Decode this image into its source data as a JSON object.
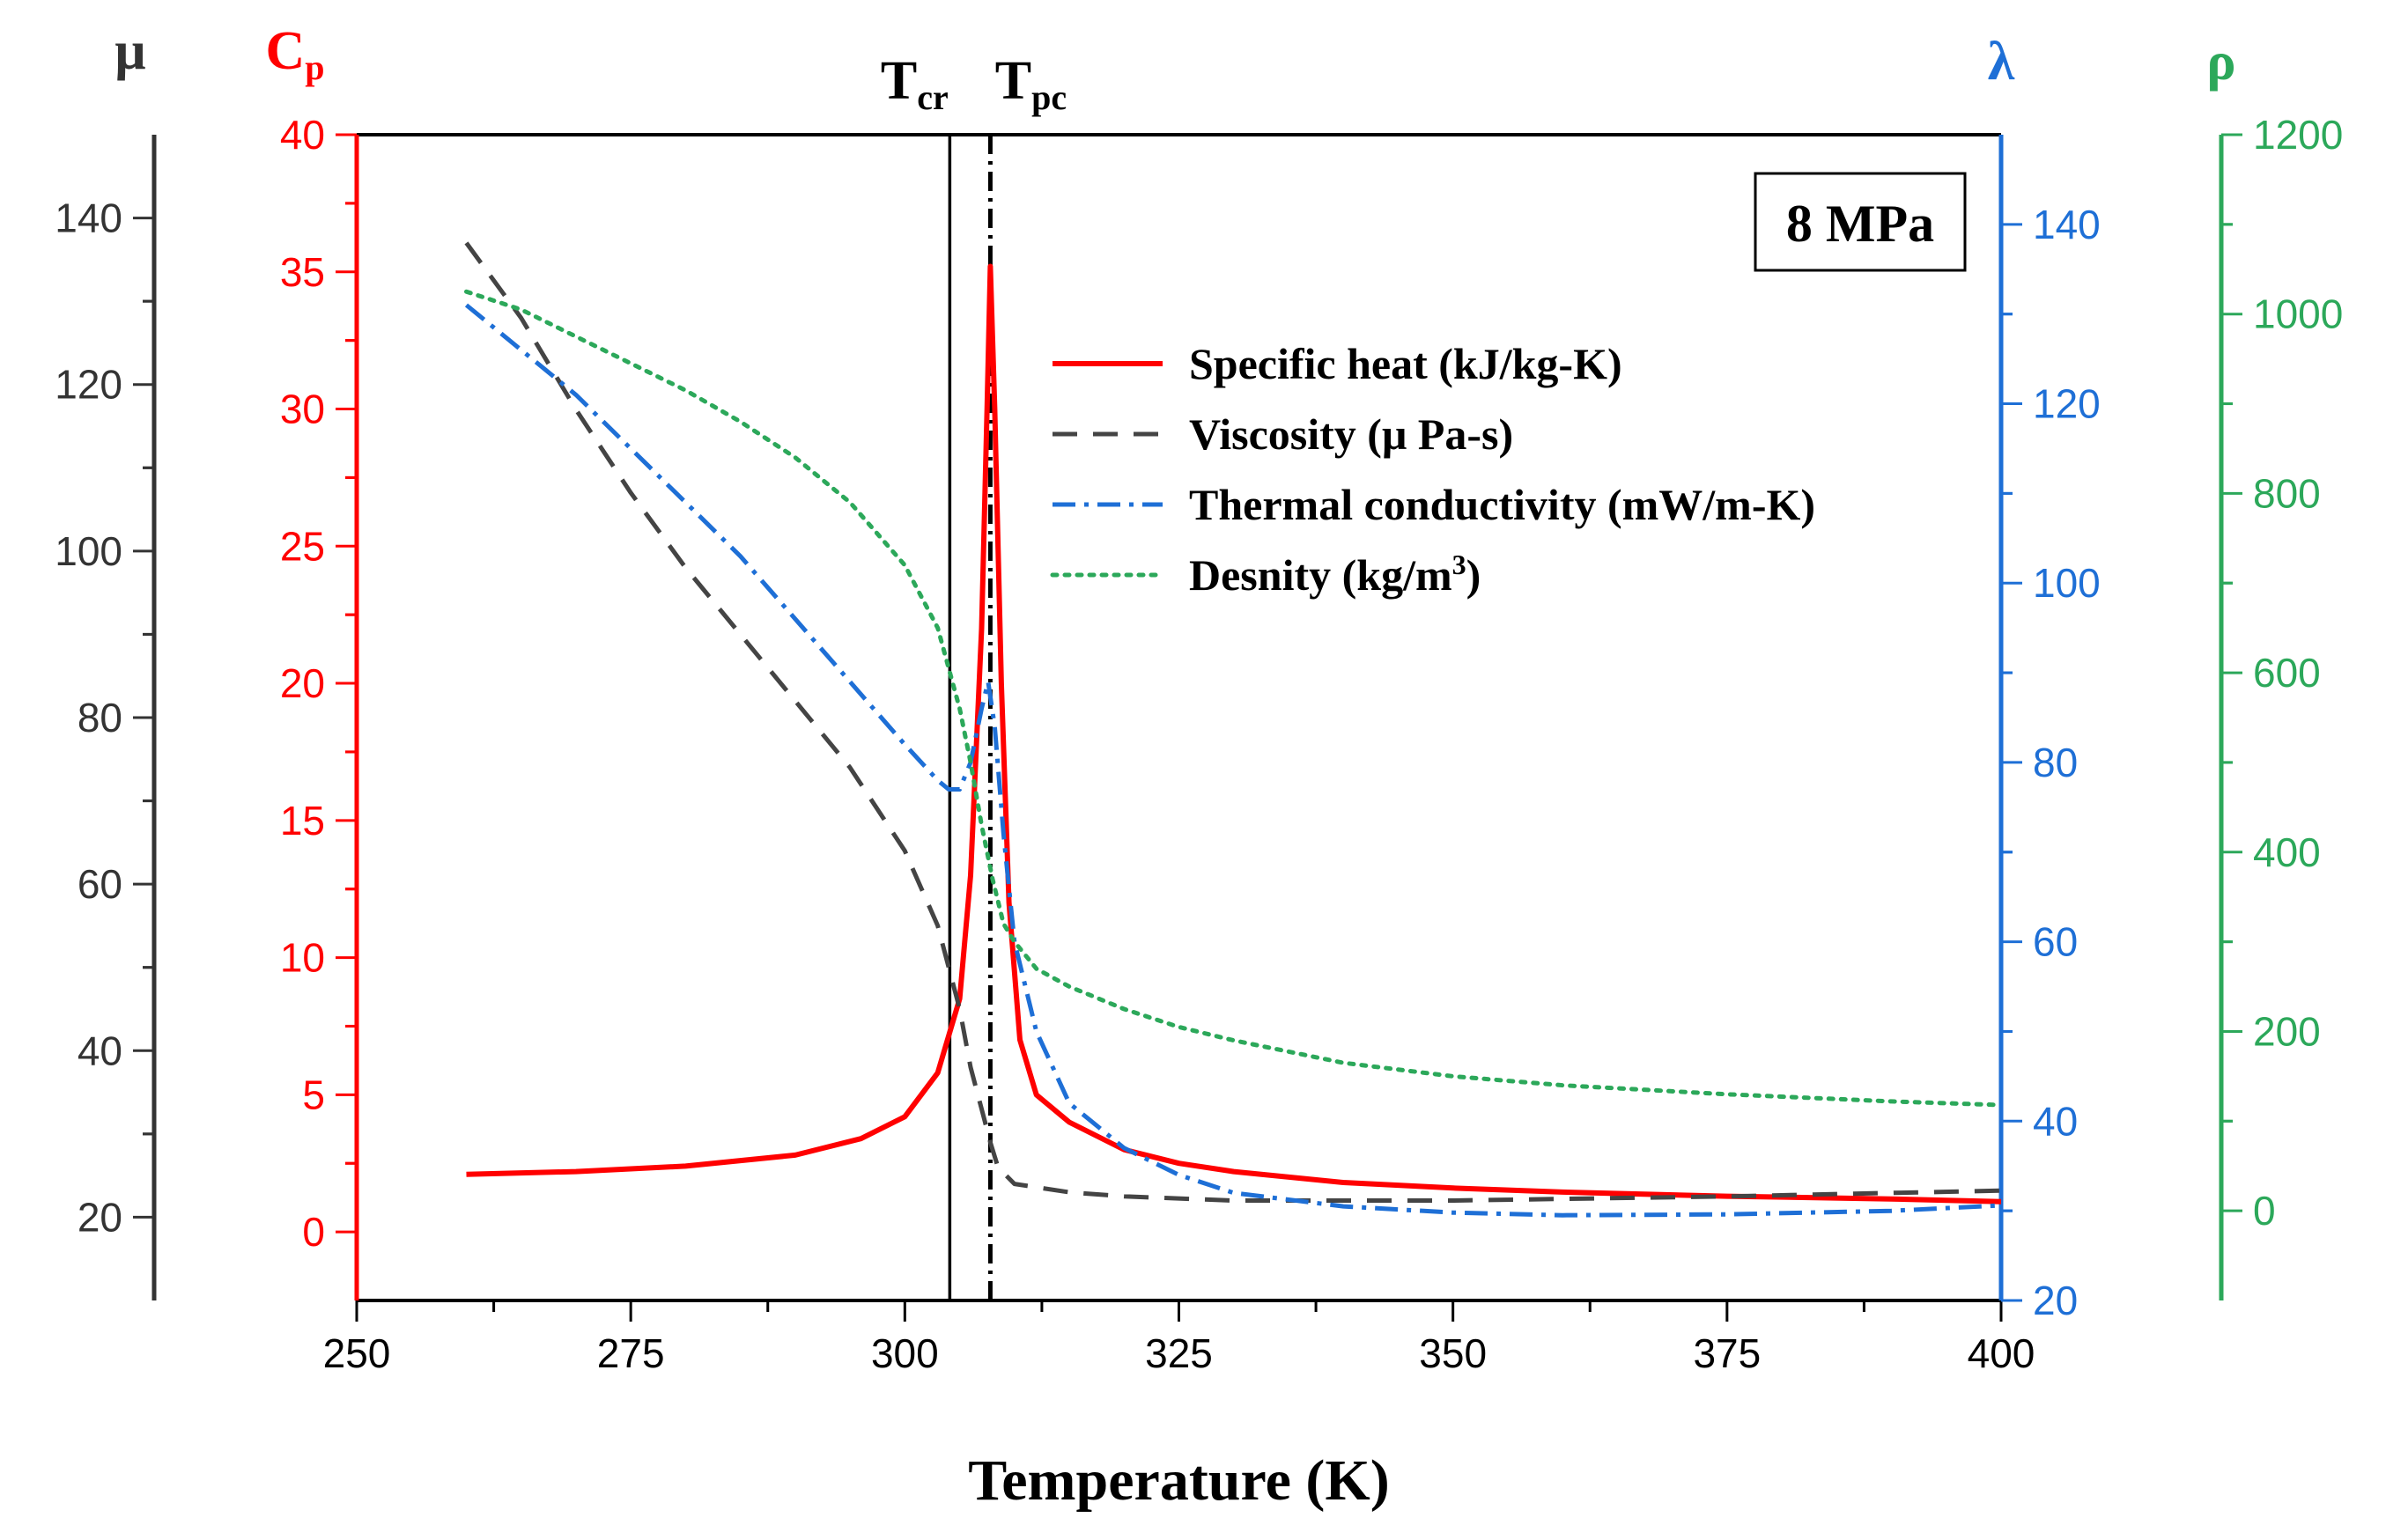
{
  "chart_data": {
    "type": "line",
    "xlabel": "Temperature (K)",
    "xlim": [
      250,
      400
    ],
    "x_ticks": [
      250,
      275,
      300,
      325,
      350,
      375,
      400
    ],
    "annotation": "8 MPa",
    "axes": {
      "mu": {
        "label": "μ",
        "color": "#333333",
        "ylim": [
          10,
          150
        ],
        "ticks": [
          20,
          40,
          60,
          80,
          100,
          120,
          140
        ],
        "tick_labels": [
          "20",
          "40",
          "60",
          "80",
          "100",
          "120",
          "140"
        ]
      },
      "cp": {
        "label": "C",
        "label_sub": "p",
        "color": "#ff0000",
        "ylim": [
          -2.5,
          40
        ],
        "ticks": [
          0,
          5,
          10,
          15,
          20,
          25,
          30,
          35,
          40
        ],
        "tick_labels": [
          "0",
          "5",
          "10",
          "15",
          "20",
          "25",
          "30",
          "35",
          "40"
        ]
      },
      "lambda": {
        "label": "λ",
        "color": "#1e6fd6",
        "ylim": [
          20,
          150
        ],
        "ticks": [
          20,
          40,
          60,
          80,
          100,
          120,
          140
        ],
        "tick_labels": [
          "20",
          "40",
          "60",
          "80",
          "100",
          "120",
          "140"
        ]
      },
      "rho": {
        "label": "ρ",
        "color": "#2ca85a",
        "ylim": [
          -100,
          1200
        ],
        "ticks": [
          0,
          200,
          400,
          600,
          800,
          1000,
          1200
        ],
        "tick_labels": [
          "0",
          "200",
          "400",
          "600",
          "800",
          "1000",
          "1200"
        ]
      }
    },
    "vlines": [
      {
        "x": 304.1,
        "label": "T",
        "sub": "cr",
        "style": "solid"
      },
      {
        "x": 307.8,
        "label": "T",
        "sub": "pc",
        "style": "dashdot"
      }
    ],
    "legend_position": "upper-right",
    "series": [
      {
        "name": "Specific heat (kJ/kg-K)",
        "axis": "cp",
        "color": "#ff0000",
        "style": "solid",
        "points": [
          [
            260,
            2.1
          ],
          [
            270,
            2.2
          ],
          [
            280,
            2.4
          ],
          [
            290,
            2.8
          ],
          [
            296,
            3.4
          ],
          [
            300,
            4.2
          ],
          [
            303,
            5.8
          ],
          [
            305,
            8.5
          ],
          [
            306,
            13
          ],
          [
            307,
            22
          ],
          [
            307.5,
            30
          ],
          [
            307.8,
            35.2
          ],
          [
            308.2,
            30
          ],
          [
            308.8,
            20
          ],
          [
            309.5,
            12
          ],
          [
            310.5,
            7
          ],
          [
            312,
            5
          ],
          [
            315,
            4
          ],
          [
            320,
            3
          ],
          [
            325,
            2.5
          ],
          [
            330,
            2.2
          ],
          [
            340,
            1.8
          ],
          [
            350,
            1.6
          ],
          [
            360,
            1.45
          ],
          [
            375,
            1.3
          ],
          [
            390,
            1.2
          ],
          [
            400,
            1.1
          ]
        ]
      },
      {
        "name": "Viscosity (μ Pa-s)",
        "axis": "mu",
        "color": "#444444",
        "style": "dash",
        "points": [
          [
            260,
            137
          ],
          [
            265,
            128
          ],
          [
            270,
            117
          ],
          [
            275,
            107
          ],
          [
            280,
            98
          ],
          [
            285,
            90
          ],
          [
            290,
            82
          ],
          [
            295,
            74
          ],
          [
            300,
            64
          ],
          [
            303,
            55
          ],
          [
            305,
            45
          ],
          [
            306,
            38
          ],
          [
            307,
            33
          ],
          [
            307.8,
            29
          ],
          [
            308.5,
            26
          ],
          [
            310,
            24
          ],
          [
            315,
            23
          ],
          [
            320,
            22.5
          ],
          [
            330,
            22
          ],
          [
            350,
            22
          ],
          [
            375,
            22.5
          ],
          [
            400,
            23.2
          ]
        ]
      },
      {
        "name": "Thermal conductivity (mW/m-K)",
        "axis": "lambda",
        "color": "#1e6fd6",
        "style": "dashdot",
        "points": [
          [
            260,
            131
          ],
          [
            265,
            126
          ],
          [
            270,
            121
          ],
          [
            275,
            115
          ],
          [
            280,
            109
          ],
          [
            285,
            103
          ],
          [
            290,
            96
          ],
          [
            295,
            89
          ],
          [
            300,
            82
          ],
          [
            303,
            78
          ],
          [
            304,
            77
          ],
          [
            305,
            77
          ],
          [
            306,
            80
          ],
          [
            307,
            86
          ],
          [
            307.6,
            89
          ],
          [
            308.2,
            84
          ],
          [
            309,
            72
          ],
          [
            310,
            60
          ],
          [
            312,
            50
          ],
          [
            315,
            42
          ],
          [
            320,
            37
          ],
          [
            325,
            34
          ],
          [
            330,
            32
          ],
          [
            340,
            30.5
          ],
          [
            350,
            29.8
          ],
          [
            360,
            29.5
          ],
          [
            375,
            29.6
          ],
          [
            390,
            30
          ],
          [
            400,
            30.6
          ]
        ]
      },
      {
        "name": "Desnity (kg/m",
        "name_sup": "3",
        "name_suffix": ")",
        "axis": "rho",
        "color": "#2ca85a",
        "style": "dot",
        "points": [
          [
            260,
            1025
          ],
          [
            265,
            1005
          ],
          [
            270,
            975
          ],
          [
            275,
            945
          ],
          [
            280,
            915
          ],
          [
            285,
            880
          ],
          [
            290,
            840
          ],
          [
            295,
            790
          ],
          [
            300,
            720
          ],
          [
            303,
            650
          ],
          [
            305,
            560
          ],
          [
            306,
            500
          ],
          [
            307,
            430
          ],
          [
            308,
            370
          ],
          [
            309,
            320
          ],
          [
            310,
            300
          ],
          [
            312,
            270
          ],
          [
            315,
            250
          ],
          [
            320,
            225
          ],
          [
            325,
            205
          ],
          [
            330,
            190
          ],
          [
            340,
            165
          ],
          [
            350,
            150
          ],
          [
            360,
            140
          ],
          [
            375,
            130
          ],
          [
            390,
            122
          ],
          [
            400,
            118
          ]
        ]
      }
    ]
  }
}
